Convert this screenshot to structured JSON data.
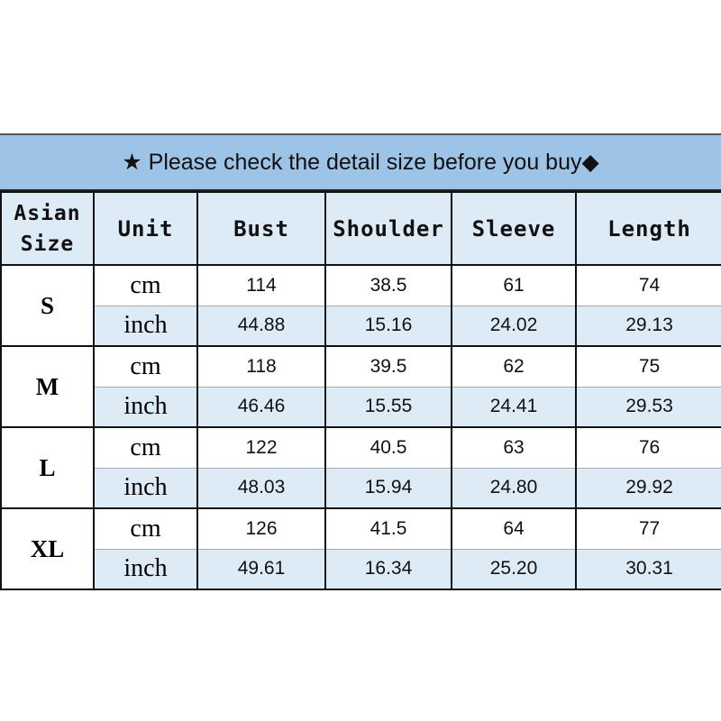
{
  "banner": {
    "star": "★",
    "text": "Please check the detail size before you buy",
    "diamond": "◆"
  },
  "headers": [
    "Asian Size",
    "Unit",
    "Bust",
    "Shoulder",
    "Sleeve",
    "Length"
  ],
  "rows": [
    {
      "size": "S",
      "cm": [
        "cm",
        "114",
        "38.5",
        "61",
        "74"
      ],
      "inch": [
        "inch",
        "44.88",
        "15.16",
        "24.02",
        "29.13"
      ]
    },
    {
      "size": "M",
      "cm": [
        "cm",
        "118",
        "39.5",
        "62",
        "75"
      ],
      "inch": [
        "inch",
        "46.46",
        "15.55",
        "24.41",
        "29.53"
      ]
    },
    {
      "size": "L",
      "cm": [
        "cm",
        "122",
        "40.5",
        "63",
        "76"
      ],
      "inch": [
        "inch",
        "48.03",
        "15.94",
        "24.80",
        "29.92"
      ]
    },
    {
      "size": "XL",
      "cm": [
        "cm",
        "126",
        "41.5",
        "64",
        "77"
      ],
      "inch": [
        "inch",
        "49.61",
        "16.34",
        "25.20",
        "30.31"
      ]
    }
  ],
  "colors": {
    "banner": "#9DC3E6",
    "header_row": "#DDEBF7",
    "inch_row": "#DDEBF7"
  }
}
